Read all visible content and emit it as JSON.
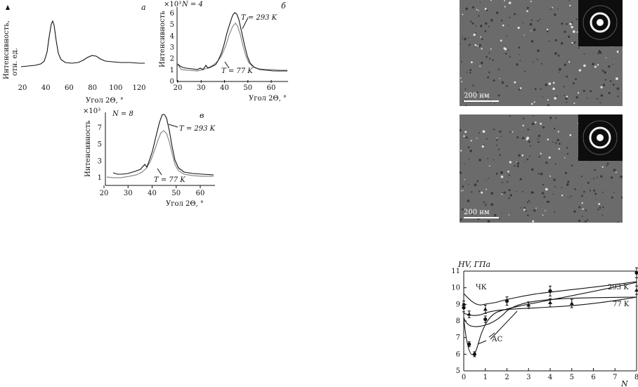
{
  "panel_a": {
    "label": "а",
    "ylabel_line1": "Интенсивность,",
    "ylabel_line2": "отн. ед.",
    "xlabel": "Угол 2Θ, °",
    "xticks": [
      "20",
      "40",
      "60",
      "80",
      "100",
      "120"
    ]
  },
  "panel_b": {
    "label": "б",
    "scale": "×10³",
    "n_label": "N = 4",
    "ylabel": "Интенсивность",
    "xlabel": "Угол 2Θ, °",
    "xticks": [
      "20",
      "30",
      "40",
      "50",
      "60"
    ],
    "yticks": [
      "0",
      "1",
      "2",
      "3",
      "4",
      "5",
      "6"
    ],
    "t_high": "T = 293 K",
    "t_low": "T = 77 K"
  },
  "panel_c": {
    "label": "в",
    "scale": "×10³",
    "n_label": "N = 8",
    "ylabel": "Интенсивность",
    "xlabel": "Угол 2Θ, °",
    "xticks": [
      "20",
      "30",
      "40",
      "50",
      "60"
    ],
    "yticks": [
      "1",
      "3",
      "5",
      "7"
    ],
    "t_high": "T = 293 K",
    "t_low": "T = 77 K"
  },
  "tem": {
    "scale_top": "200 нм",
    "scale_bottom": "200 нм"
  },
  "chart_data": {
    "type": "scatter",
    "ylabel": "HV, ГПа",
    "xlabel": "N",
    "xlim": [
      0,
      8
    ],
    "ylim": [
      5,
      11
    ],
    "xticks": [
      "0",
      "1",
      "2",
      "3",
      "4",
      "5",
      "6",
      "7",
      "8"
    ],
    "yticks": [
      "5",
      "6",
      "7",
      "8",
      "9",
      "10",
      "11"
    ],
    "annotations": [
      "ЧК",
      "АС",
      "293 K",
      "77 K"
    ],
    "series": [
      {
        "name": "293 K",
        "x": [
          0,
          0.25,
          0.5,
          1,
          2,
          4,
          8
        ],
        "y": [
          8.8,
          6.6,
          6.0,
          8.1,
          9.2,
          9.8,
          10.9
        ],
        "err": [
          0.25,
          0.15,
          0.15,
          0.2,
          0.25,
          0.3,
          0.3
        ]
      },
      {
        "name": "77 K",
        "x": [
          0,
          0.25,
          1,
          3,
          4,
          5,
          8
        ],
        "y": [
          9.0,
          8.4,
          8.7,
          8.95,
          9.1,
          9.05,
          9.85
        ],
        "err": [
          0.2,
          0.2,
          0.25,
          0.2,
          0.25,
          0.25,
          0.25
        ]
      }
    ]
  }
}
